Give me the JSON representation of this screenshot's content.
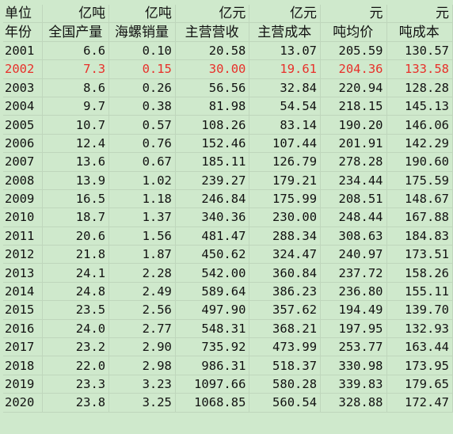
{
  "table": {
    "units": [
      "单位",
      "亿吨",
      "亿吨",
      "亿元",
      "亿元",
      "元",
      "元"
    ],
    "headers": [
      "年份",
      "全国产量",
      "海螺销量",
      "主营营收",
      "主营成本",
      "吨均价",
      "吨成本"
    ],
    "highlight_color": "#e8302a",
    "rows": [
      [
        "2001",
        "6.6",
        "0.10",
        "20.58",
        "13.07",
        "205.59",
        "130.57"
      ],
      [
        "2002",
        "7.3",
        "0.15",
        "30.00",
        "19.61",
        "204.36",
        "133.58"
      ],
      [
        "2003",
        "8.6",
        "0.26",
        "56.56",
        "32.84",
        "220.94",
        "128.28"
      ],
      [
        "2004",
        "9.7",
        "0.38",
        "81.98",
        "54.54",
        "218.15",
        "145.13"
      ],
      [
        "2005",
        "10.7",
        "0.57",
        "108.26",
        "83.14",
        "190.20",
        "146.06"
      ],
      [
        "2006",
        "12.4",
        "0.76",
        "152.46",
        "107.44",
        "201.91",
        "142.29"
      ],
      [
        "2007",
        "13.6",
        "0.67",
        "185.11",
        "126.79",
        "278.28",
        "190.60"
      ],
      [
        "2008",
        "13.9",
        "1.02",
        "239.27",
        "179.21",
        "234.44",
        "175.59"
      ],
      [
        "2009",
        "16.5",
        "1.18",
        "246.84",
        "175.99",
        "208.51",
        "148.67"
      ],
      [
        "2010",
        "18.7",
        "1.37",
        "340.36",
        "230.00",
        "248.44",
        "167.88"
      ],
      [
        "2011",
        "20.6",
        "1.56",
        "481.47",
        "288.34",
        "308.63",
        "184.83"
      ],
      [
        "2012",
        "21.8",
        "1.87",
        "450.62",
        "324.47",
        "240.97",
        "173.51"
      ],
      [
        "2013",
        "24.1",
        "2.28",
        "542.00",
        "360.84",
        "237.72",
        "158.26"
      ],
      [
        "2014",
        "24.8",
        "2.49",
        "589.64",
        "386.23",
        "236.80",
        "155.11"
      ],
      [
        "2015",
        "23.5",
        "2.56",
        "497.90",
        "357.62",
        "194.49",
        "139.70"
      ],
      [
        "2016",
        "24.0",
        "2.77",
        "548.31",
        "368.21",
        "197.95",
        "132.93"
      ],
      [
        "2017",
        "23.2",
        "2.90",
        "735.92",
        "473.99",
        "253.77",
        "163.44"
      ],
      [
        "2018",
        "22.0",
        "2.98",
        "986.31",
        "518.37",
        "330.98",
        "173.95"
      ],
      [
        "2019",
        "23.3",
        "3.23",
        "1097.66",
        "580.28",
        "339.83",
        "179.65"
      ],
      [
        "2020",
        "23.8",
        "3.25",
        "1068.85",
        "560.54",
        "328.88",
        "172.47"
      ]
    ],
    "highlight_row_index": 1
  }
}
